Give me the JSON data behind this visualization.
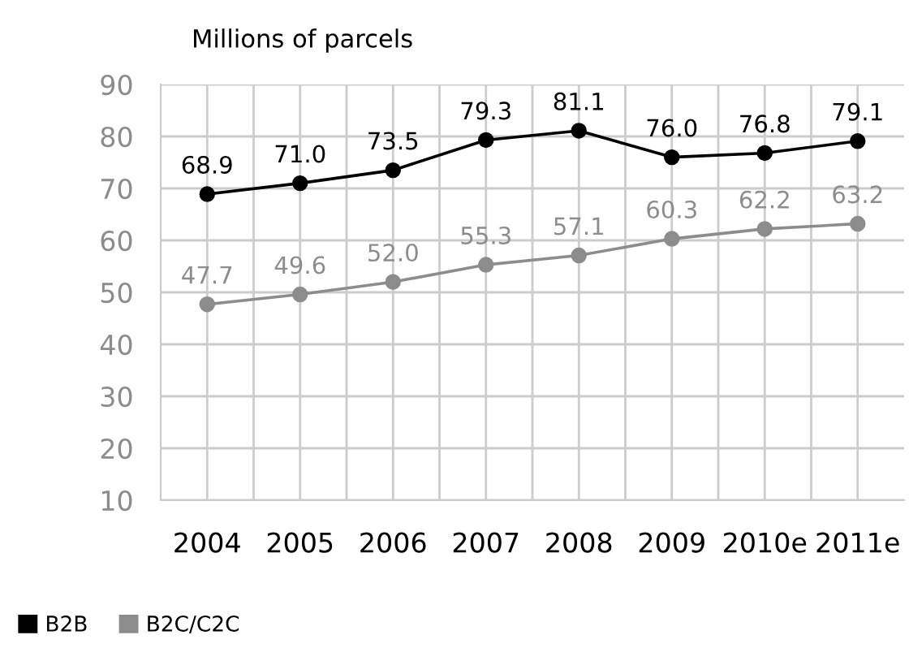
{
  "chart_data": {
    "type": "line",
    "title": "Millions of parcels",
    "categories": [
      "2004",
      "2005",
      "2006",
      "2007",
      "2008",
      "2009",
      "2010e",
      "2011e"
    ],
    "series": [
      {
        "name": "B2B",
        "color": "#000000",
        "values": [
          68.9,
          71.0,
          73.5,
          79.3,
          81.1,
          76.0,
          76.8,
          79.1
        ],
        "value_labels": [
          "68.9",
          "71.0",
          "73.5",
          "79.3",
          "81.1",
          "76.0",
          "76.8",
          "79.1"
        ]
      },
      {
        "name": "B2C/C2C",
        "color": "#8c8c8c",
        "values": [
          47.7,
          49.6,
          52.0,
          55.3,
          57.1,
          60.3,
          62.2,
          63.2
        ],
        "value_labels": [
          "47.7",
          "49.6",
          "52.0",
          "55.3",
          "57.1",
          "60.3",
          "62.2",
          "63.2"
        ]
      }
    ],
    "ylim": [
      10,
      90
    ],
    "yticks": [
      10,
      20,
      30,
      40,
      50,
      60,
      70,
      80,
      90
    ],
    "grid": true,
    "legend": "bottom left",
    "marker": "circle",
    "line_style": "solid"
  }
}
